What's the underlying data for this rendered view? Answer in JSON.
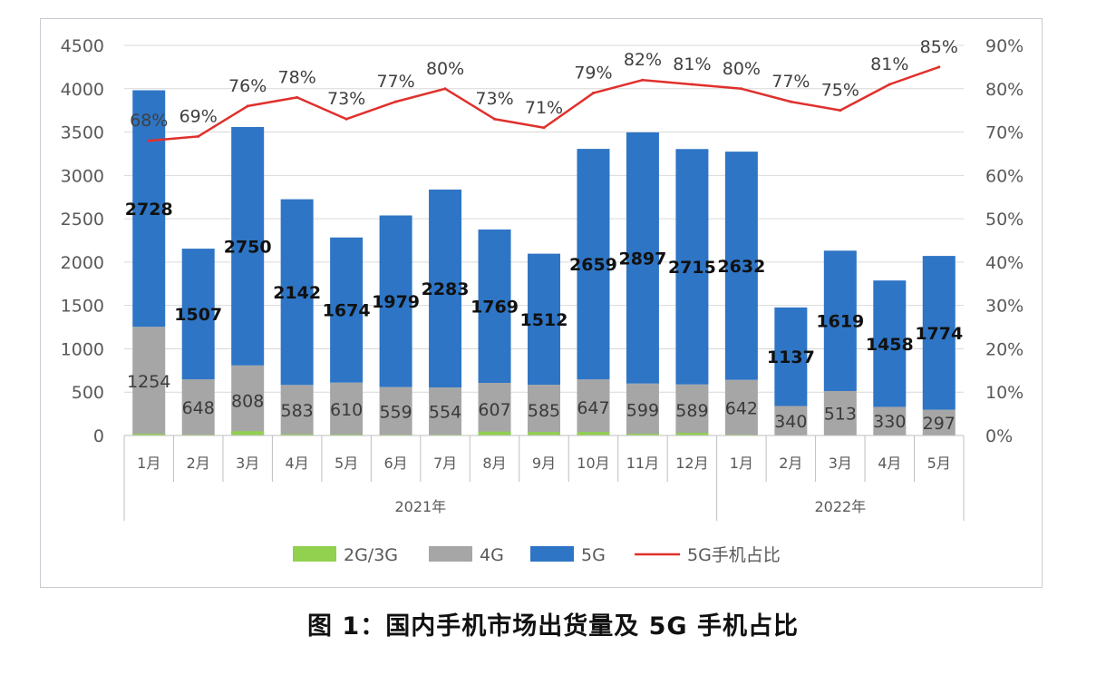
{
  "caption": "图 1：国内手机市场出货量及 5G 手机占比",
  "chart_data": {
    "type": "bar",
    "stacked": true,
    "groups": [
      {
        "label": "2021年",
        "categories": [
          "1月",
          "2月",
          "3月",
          "4月",
          "5月",
          "6月",
          "7月",
          "8月",
          "9月",
          "10月",
          "11月",
          "12月"
        ]
      },
      {
        "label": "2022年",
        "categories": [
          "1月",
          "2月",
          "3月",
          "4月",
          "5月"
        ]
      }
    ],
    "categories": [
      "1月",
      "2月",
      "3月",
      "4月",
      "5月",
      "6月",
      "7月",
      "8月",
      "9月",
      "10月",
      "11月",
      "12月",
      "1月",
      "2月",
      "3月",
      "4月",
      "5月"
    ],
    "series": [
      {
        "name": "2G/3G",
        "color": "#92d050",
        "values": [
          20,
          10,
          50,
          15,
          12,
          10,
          10,
          45,
          40,
          40,
          20,
          30,
          10,
          5,
          5,
          5,
          5
        ],
        "labels": []
      },
      {
        "name": "4G",
        "color": "#a6a6a6",
        "values": [
          1254,
          648,
          808,
          583,
          610,
          559,
          554,
          607,
          585,
          647,
          599,
          589,
          642,
          340,
          513,
          330,
          297
        ],
        "labels": [
          "1254",
          "648",
          "808",
          "583",
          "610",
          "559",
          "554",
          "607",
          "585",
          "647",
          "599",
          "589",
          "642",
          "340",
          "513",
          "330",
          "297"
        ]
      },
      {
        "name": "5G",
        "color": "#2e75c5",
        "values": [
          2728,
          1507,
          2750,
          2142,
          1674,
          1979,
          2283,
          1769,
          1512,
          2659,
          2897,
          2715,
          2632,
          1137,
          1619,
          1458,
          1774
        ],
        "labels": [
          "2728",
          "1507",
          "2750",
          "2142",
          "1674",
          "1979",
          "2283",
          "1769",
          "1512",
          "2659",
          "2897",
          "2715",
          "2632",
          "1137",
          "1619",
          "1458",
          "1774"
        ]
      }
    ],
    "line_series": {
      "name": "5G手机占比",
      "color": "#e0302c",
      "axis": "right",
      "values": [
        68,
        69,
        76,
        78,
        73,
        77,
        80,
        73,
        71,
        79,
        82,
        81,
        80,
        77,
        75,
        81,
        85
      ],
      "labels": [
        "68%",
        "69%",
        "76%",
        "78%",
        "73%",
        "77%",
        "80%",
        "73%",
        "71%",
        "79%",
        "82%",
        "81%",
        "80%",
        "77%",
        "75%",
        "81%",
        "85%"
      ]
    },
    "y_left": {
      "min": 0,
      "max": 4500,
      "step": 500,
      "ticks": [
        "0",
        "500",
        "1000",
        "1500",
        "2000",
        "2500",
        "3000",
        "3500",
        "4000",
        "4500"
      ]
    },
    "y_right": {
      "min": 0,
      "max": 90,
      "step": 10,
      "ticks": [
        "0%",
        "10%",
        "20%",
        "30%",
        "40%",
        "50%",
        "60%",
        "70%",
        "80%",
        "90%"
      ]
    },
    "grid": true,
    "legend": {
      "position": "bottom",
      "items": [
        "2G/3G",
        "4G",
        "5G",
        "5G手机占比"
      ]
    }
  }
}
